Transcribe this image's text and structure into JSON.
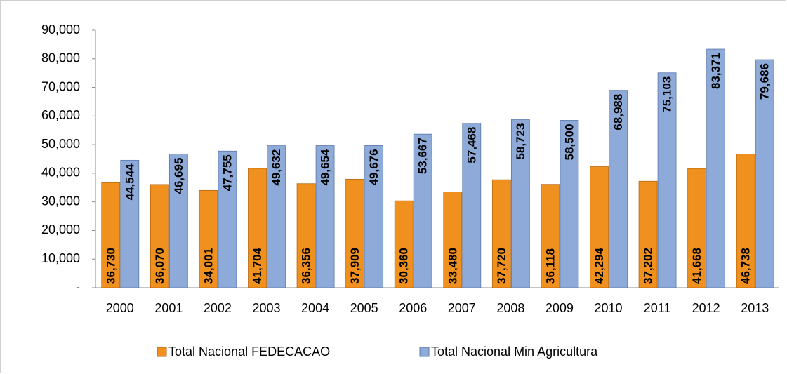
{
  "chart_data": {
    "type": "bar",
    "categories": [
      "2000",
      "2001",
      "2002",
      "2003",
      "2004",
      "2005",
      "2006",
      "2007",
      "2008",
      "2009",
      "2010",
      "2011",
      "2012",
      "2013"
    ],
    "series": [
      {
        "name": "Total Nacional FEDECACAO",
        "color": "#f0901e",
        "values": [
          36730,
          36070,
          34001,
          41704,
          36356,
          37909,
          30360,
          33480,
          37720,
          36118,
          42294,
          37202,
          41668,
          46738
        ],
        "value_labels": [
          "36,730",
          "36,070",
          "34,001",
          "41,704",
          "36,356",
          "37,909",
          "30,360",
          "33,480",
          "37,720",
          "36,118",
          "42,294",
          "37,202",
          "41,668",
          "46,738"
        ]
      },
      {
        "name": "Total Nacional Min Agricultura",
        "color": "#8eaad9",
        "values": [
          44544,
          46695,
          47755,
          49632,
          49654,
          49676,
          53667,
          57468,
          58723,
          58500,
          68988,
          75103,
          83371,
          79686
        ],
        "value_labels": [
          "44,544",
          "46,695",
          "47,755",
          "49,632",
          "49,654",
          "49,676",
          "53,667",
          "57,468",
          "58,723",
          "58,500",
          "68,988",
          "75,103",
          "83,371",
          "79,686"
        ]
      }
    ],
    "ylim": [
      0,
      90000
    ],
    "yticks": [
      {
        "value": 0,
        "label": "-"
      },
      {
        "value": 10000,
        "label": "10,000"
      },
      {
        "value": 20000,
        "label": "20,000"
      },
      {
        "value": 30000,
        "label": "30,000"
      },
      {
        "value": 40000,
        "label": "40,000"
      },
      {
        "value": 50000,
        "label": "50,000"
      },
      {
        "value": 60000,
        "label": "60,000"
      },
      {
        "value": 70000,
        "label": "70,000"
      },
      {
        "value": 80000,
        "label": "80,000"
      },
      {
        "value": 90000,
        "label": "90,000"
      }
    ],
    "legend": "bottom",
    "grid": false
  }
}
